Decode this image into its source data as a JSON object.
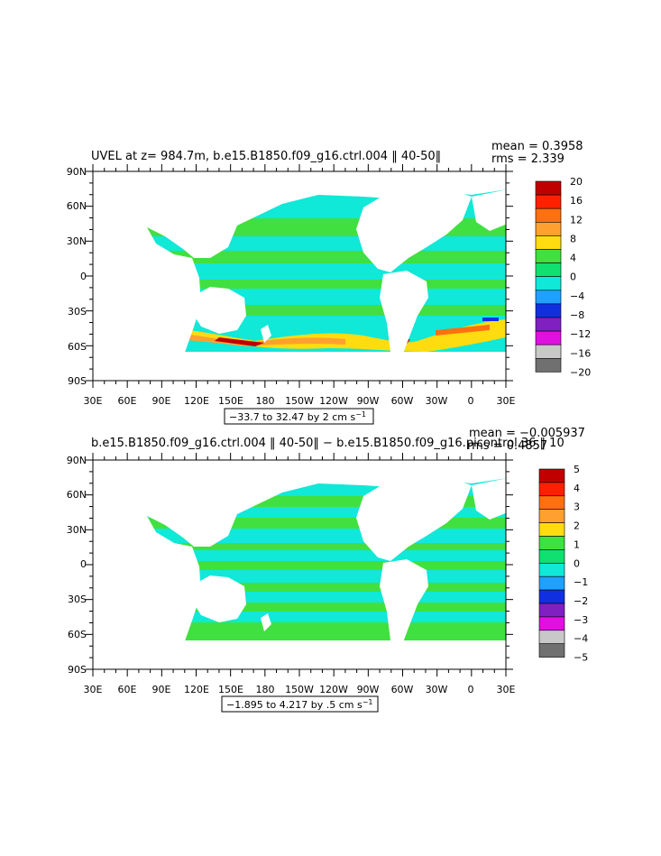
{
  "chart_data": [
    {
      "type": "heatmap",
      "title": "UVEL at z= 984.7m, b.e15.B1850.f09_g16.ctrl.004 ‖ 40-50‖",
      "mean": "mean = 0.3958",
      "rms": "rms = 2.339",
      "range_label": "−33.7 to 32.47 by 2 cm s",
      "units_sup": "−1",
      "x_ticks": [
        "30E",
        "60E",
        "90E",
        "120E",
        "150E",
        "180",
        "150W",
        "120W",
        "90W",
        "60W",
        "30W",
        "0",
        "30E"
      ],
      "y_ticks": [
        "90N",
        "60N",
        "30N",
        "0",
        "30S",
        "60S",
        "90S"
      ],
      "colorbar_labels": [
        "20",
        "16",
        "12",
        "8",
        "4",
        "0",
        "−4",
        "−8",
        "−12",
        "−16",
        "−20"
      ],
      "colorbar_colors": [
        "#c00000",
        "#ff2000",
        "#ff7010",
        "#ffa030",
        "#ffdc10",
        "#40e040",
        "#10e070",
        "#10e8d8",
        "#20a0ff",
        "#1030e0",
        "#8020c0",
        "#e010e0",
        "#c8c8c8",
        "#707070"
      ]
    },
    {
      "type": "heatmap",
      "title": "b.e15.B1850.f09_g16.ctrl.004 ‖ 40-50‖ − b.e15.B1850.f09_g16.picontrol.36 ‖ 10",
      "mean": "mean = −0.005937",
      "rms": "rms = 0.4857",
      "range_label": "−1.895 to 4.217 by .5 cm s",
      "units_sup": "−1",
      "x_ticks": [
        "30E",
        "60E",
        "90E",
        "120E",
        "150E",
        "180",
        "150W",
        "120W",
        "90W",
        "60W",
        "30W",
        "0",
        "30E"
      ],
      "y_ticks": [
        "90N",
        "60N",
        "30N",
        "0",
        "30S",
        "60S",
        "90S"
      ],
      "colorbar_labels": [
        "5",
        "4",
        "3",
        "2",
        "1",
        "0",
        "−1",
        "−2",
        "−3",
        "−4",
        "−5"
      ],
      "colorbar_colors": [
        "#c00000",
        "#ff2000",
        "#ff7010",
        "#ffa030",
        "#ffdc10",
        "#40e040",
        "#10e070",
        "#10e8d8",
        "#20a0ff",
        "#1030e0",
        "#8020c0",
        "#e010e0",
        "#c8c8c8",
        "#707070"
      ]
    }
  ]
}
